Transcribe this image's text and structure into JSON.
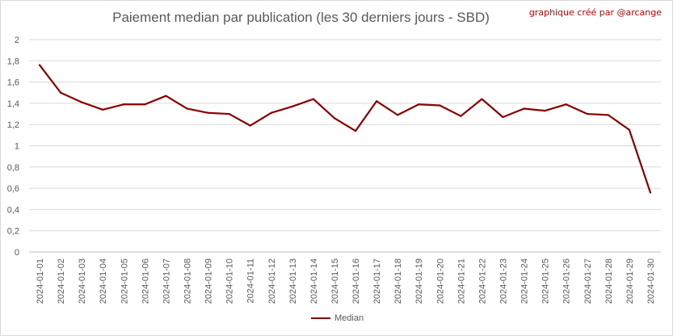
{
  "chart_data": {
    "type": "line",
    "title": "Paiement median par publication (les 30 derniers jours - SBD)",
    "annotation": "graphique créé par @arcange",
    "xlabel": "",
    "ylabel": "",
    "ylim": [
      0,
      2
    ],
    "yticks": [
      "0",
      "0,2",
      "0,4",
      "0,6",
      "0,8",
      "1",
      "1,2",
      "1,4",
      "1,6",
      "1,8",
      "2"
    ],
    "grid": true,
    "legend_position": "bottom",
    "categories": [
      "2024-01-01",
      "2024-01-02",
      "2024-01-03",
      "2024-01-04",
      "2024-01-05",
      "2024-01-06",
      "2024-01-07",
      "2024-01-08",
      "2024-01-09",
      "2024-01-10",
      "2024-01-11",
      "2024-01-12",
      "2024-01-13",
      "2024-01-14",
      "2024-01-15",
      "2024-01-16",
      "2024-01-17",
      "2024-01-18",
      "2024-01-19",
      "2024-01-20",
      "2024-01-21",
      "2024-01-22",
      "2024-01-23",
      "2024-01-24",
      "2024-01-25",
      "2024-01-26",
      "2024-01-27",
      "2024-01-28",
      "2024-01-29",
      "2024-01-30"
    ],
    "series": [
      {
        "name": "Median",
        "color": "#8b0000",
        "values": [
          1.76,
          1.5,
          1.41,
          1.34,
          1.39,
          1.39,
          1.47,
          1.35,
          1.31,
          1.3,
          1.19,
          1.31,
          1.37,
          1.44,
          1.26,
          1.14,
          1.42,
          1.29,
          1.39,
          1.38,
          1.28,
          1.44,
          1.27,
          1.35,
          1.33,
          1.39,
          1.3,
          1.29,
          1.15,
          0.56
        ]
      }
    ]
  }
}
